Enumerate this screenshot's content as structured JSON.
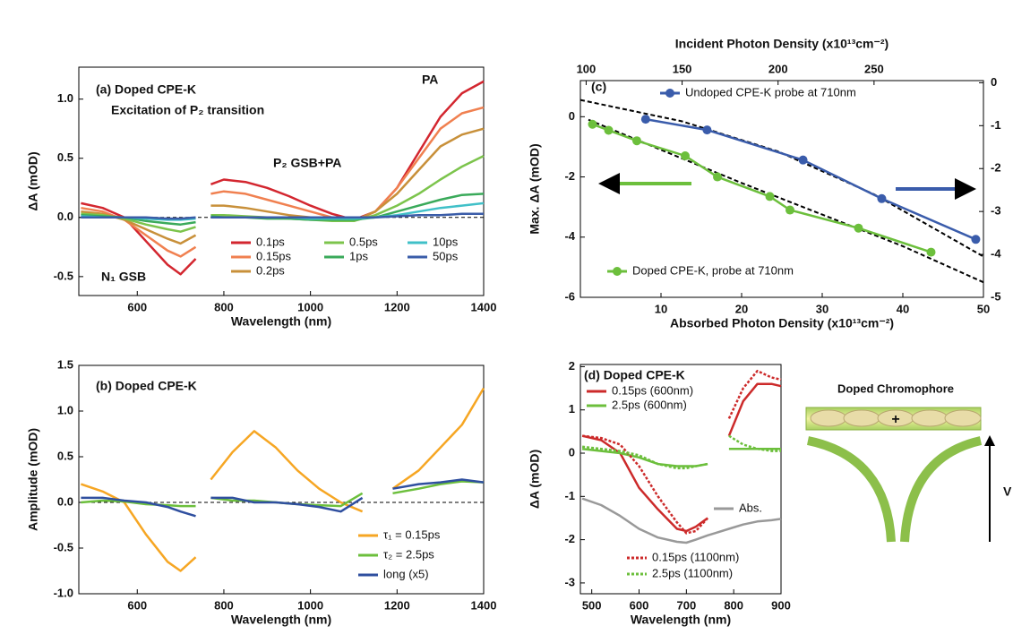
{
  "chart_data": [
    {
      "type": "line",
      "zero_line": true,
      "annotations": [
        "(a) Doped CPE-K",
        "Excitation of P₂ transition",
        "P₂ GSB+PA",
        "PA",
        "N₁ GSB"
      ],
      "x_label": "Wavelength (nm)",
      "y_label": "ΔA (mOD)",
      "xlim": [
        465,
        1400
      ],
      "ylim": [
        -0.66,
        1.27
      ],
      "xticks": [
        600,
        800,
        1000,
        1200,
        1400
      ],
      "yticks": [
        -0.5,
        {
          "value": 0,
          "label": "0.0"
        },
        0.5,
        {
          "value": 1,
          "label": "1.0"
        }
      ],
      "x": [
        470,
        520,
        570,
        620,
        670,
        700,
        735,
        750,
        770,
        800,
        850,
        900,
        950,
        1000,
        1050,
        1100,
        1150,
        1200,
        1250,
        1300,
        1350,
        1400
      ],
      "series": [
        {
          "name": "0.1ps",
          "color": "#d3262f",
          "values": [
            0.12,
            0.08,
            0.0,
            -0.2,
            -0.4,
            -0.48,
            -0.35,
            null,
            0.28,
            0.32,
            0.3,
            0.25,
            0.18,
            0.1,
            0.03,
            -0.02,
            0.05,
            0.25,
            0.55,
            0.85,
            1.05,
            1.15
          ]
        },
        {
          "name": "0.15ps",
          "color": "#f08050",
          "values": [
            0.08,
            0.05,
            -0.02,
            -0.15,
            -0.28,
            -0.33,
            -0.25,
            null,
            0.2,
            0.22,
            0.2,
            0.15,
            0.1,
            0.05,
            0.0,
            -0.03,
            0.05,
            0.25,
            0.5,
            0.75,
            0.88,
            0.93
          ]
        },
        {
          "name": "0.2ps",
          "color": "#c8903a",
          "values": [
            0.05,
            0.03,
            -0.02,
            -0.1,
            -0.18,
            -0.22,
            -0.15,
            null,
            0.1,
            0.1,
            0.08,
            0.05,
            0.02,
            0.0,
            -0.02,
            -0.03,
            0.05,
            0.2,
            0.4,
            0.6,
            0.7,
            0.75
          ]
        },
        {
          "name": "0.5ps",
          "color": "#7cc44c",
          "values": [
            0.03,
            0.02,
            -0.01,
            -0.06,
            -0.1,
            -0.12,
            -0.08,
            null,
            0.02,
            0.02,
            0.01,
            0.0,
            -0.01,
            -0.02,
            -0.03,
            -0.03,
            0.02,
            0.1,
            0.2,
            0.32,
            0.43,
            0.52
          ]
        },
        {
          "name": "1ps",
          "color": "#3aaa5a",
          "values": [
            0.02,
            0.01,
            0.0,
            -0.03,
            -0.05,
            -0.06,
            -0.04,
            null,
            0.01,
            0.0,
            0.0,
            -0.01,
            -0.01,
            -0.02,
            -0.02,
            -0.02,
            0.0,
            0.05,
            0.1,
            0.15,
            0.19,
            0.2
          ]
        },
        {
          "name": "10ps",
          "color": "#40c0c8",
          "values": [
            0.01,
            0.0,
            0.0,
            -0.01,
            -0.02,
            -0.02,
            -0.01,
            null,
            0.0,
            0.0,
            0.0,
            0.0,
            0.0,
            -0.01,
            -0.01,
            -0.01,
            0.0,
            0.02,
            0.05,
            0.08,
            0.1,
            0.12
          ]
        },
        {
          "name": "50ps",
          "color": "#3a5ca8",
          "values": [
            0.0,
            0.0,
            0.0,
            0.0,
            -0.01,
            -0.01,
            0.0,
            null,
            0.0,
            0.0,
            0.0,
            0.0,
            0.0,
            0.0,
            0.0,
            0.0,
            0.0,
            0.01,
            0.02,
            0.02,
            0.03,
            0.03
          ]
        }
      ]
    },
    {
      "type": "line",
      "zero_line": true,
      "annotations": [
        "(b) Doped CPE-K"
      ],
      "x_label": "Wavelength (nm)",
      "y_label": "Amplitude (mOD)",
      "xlim": [
        465,
        1400
      ],
      "ylim": [
        -1.0,
        1.5
      ],
      "xticks": [
        600,
        800,
        1000,
        1200,
        1400
      ],
      "yticks": [
        {
          "value": -1,
          "label": "-1.0"
        },
        -0.5,
        {
          "value": 0,
          "label": "0.0"
        },
        0.5,
        {
          "value": 1,
          "label": "1.0"
        },
        1.5
      ],
      "x": [
        470,
        520,
        570,
        620,
        670,
        700,
        735,
        750,
        770,
        820,
        870,
        920,
        970,
        1020,
        1070,
        1120,
        1150,
        1190,
        1250,
        1300,
        1350,
        1400
      ],
      "series": [
        {
          "name": "τ₁ = 0.15ps",
          "color": "#f6a623",
          "values": [
            0.2,
            0.12,
            0.0,
            -0.35,
            -0.65,
            -0.75,
            -0.6,
            null,
            0.25,
            0.55,
            0.78,
            0.6,
            0.35,
            0.15,
            0.0,
            -0.1,
            null,
            0.15,
            0.35,
            0.6,
            0.85,
            1.25
          ]
        },
        {
          "name": "τ₂ = 2.5ps",
          "color": "#6cbf3c",
          "values": [
            0.0,
            0.02,
            0.01,
            -0.02,
            -0.03,
            -0.04,
            -0.04,
            null,
            0.05,
            0.02,
            0.02,
            0.0,
            -0.02,
            -0.03,
            -0.04,
            0.1,
            null,
            0.1,
            0.15,
            0.2,
            0.23,
            0.22
          ]
        },
        {
          "name": "long (x5)",
          "color": "#2f4f9f",
          "values": [
            0.05,
            0.05,
            0.02,
            0.0,
            -0.05,
            -0.1,
            -0.15,
            null,
            0.05,
            0.05,
            0.0,
            0.0,
            -0.02,
            -0.05,
            -0.1,
            0.05,
            null,
            0.15,
            0.2,
            0.22,
            0.25,
            0.22
          ]
        }
      ]
    },
    {
      "type": "line",
      "markers": true,
      "annotations": [
        "(c)"
      ],
      "x_label": "Absorbed Photon Density (x10¹³cm⁻²)",
      "x2_label": "Incident Photon Density (x10¹³cm⁻²)",
      "y_label": "Max. ΔA (mOD)",
      "xlim": [
        0,
        50
      ],
      "ylim": [
        -6,
        1.2
      ],
      "x2lim": [
        97,
        307
      ],
      "y2lim": [
        -5,
        0.05
      ],
      "xticks": [
        10,
        20,
        30,
        40,
        50
      ],
      "yticks": [
        -6,
        -4,
        -2,
        0
      ],
      "x2ticks": [
        100,
        150,
        200,
        250
      ],
      "y2ticks": [
        0,
        -1,
        -2,
        -3,
        -4,
        -5
      ],
      "series": [
        {
          "name": "Undoped CPE-K probe at 710nm",
          "color": "#3a5cab",
          "axis": "y2",
          "xaxis": "x2",
          "x": [
            131,
            163,
            213,
            254,
            303
          ],
          "values": [
            -0.85,
            -1.1,
            -1.8,
            -2.7,
            -3.65
          ]
        },
        {
          "name": "Doped CPE-K, probe at 710nm",
          "color": "#6cbf3c",
          "x": [
            1.5,
            3.5,
            7,
            13,
            17,
            23.5,
            26,
            34.5,
            43.5
          ],
          "values": [
            -0.25,
            -0.45,
            -0.8,
            -1.3,
            -2.0,
            -2.65,
            -3.1,
            -3.7,
            -4.5
          ]
        }
      ],
      "fit_lines": [
        {
          "x": [
            1,
            10,
            20,
            30,
            40,
            50
          ],
          "values": [
            -0.1,
            -1.1,
            -2.2,
            -3.25,
            -4.3,
            -5.5
          ]
        },
        {
          "axis": "y2",
          "xaxis": "x2",
          "x": [
            97,
            150,
            200,
            250,
            307
          ],
          "values": [
            -0.4,
            -0.9,
            -1.6,
            -2.6,
            -4.05
          ]
        }
      ]
    },
    {
      "type": "line",
      "annotations": [
        "(d) Doped CPE-K"
      ],
      "x_label": "Wavelength (nm)",
      "y_label": "ΔA (mOD)",
      "xlim": [
        476,
        900
      ],
      "ylim": [
        -3.25,
        2.05
      ],
      "xticks": [
        500,
        600,
        700,
        800,
        900
      ],
      "yticks": [
        -3,
        -2,
        -1,
        0,
        1,
        2
      ],
      "x": [
        480,
        520,
        560,
        600,
        640,
        680,
        700,
        720,
        745,
        760,
        790,
        820,
        850,
        880,
        900
      ],
      "series": [
        {
          "name": "0.15ps (600nm)",
          "color": "#cc2a2a",
          "values": [
            0.4,
            0.3,
            0.0,
            -0.8,
            -1.3,
            -1.75,
            -1.8,
            -1.7,
            -1.5,
            null,
            0.4,
            1.2,
            1.6,
            1.6,
            1.55
          ]
        },
        {
          "name": "2.5ps (600nm)",
          "color": "#6cbf3c",
          "values": [
            0.1,
            0.05,
            0.0,
            -0.1,
            -0.25,
            -0.3,
            -0.3,
            -0.3,
            -0.25,
            null,
            0.1,
            0.1,
            0.1,
            0.1,
            0.1
          ]
        },
        {
          "name": "0.15ps (1100nm)",
          "color": "#cc2a2a",
          "style": "dotted",
          "values": [
            0.4,
            0.35,
            0.2,
            -0.3,
            -1.0,
            -1.6,
            -1.85,
            -1.8,
            -1.5,
            null,
            0.8,
            1.5,
            1.9,
            1.75,
            1.7
          ]
        },
        {
          "name": "2.5ps (1100nm)",
          "color": "#6cbf3c",
          "style": "dotted",
          "values": [
            0.15,
            0.1,
            0.05,
            -0.05,
            -0.25,
            -0.35,
            -0.35,
            -0.3,
            -0.25,
            null,
            0.4,
            0.2,
            0.1,
            0.05,
            0.05
          ]
        },
        {
          "name": "Abs.",
          "color": "#999999",
          "values": [
            -1.05,
            -1.2,
            -1.45,
            -1.75,
            -1.95,
            -2.05,
            -2.07,
            -2.0,
            -1.9,
            -1.85,
            -1.75,
            -1.65,
            -1.58,
            -1.55,
            -1.52
          ]
        }
      ]
    }
  ],
  "diagram": {
    "title": "Doped Chromophore",
    "charge": "+",
    "arrow_label": "V"
  }
}
